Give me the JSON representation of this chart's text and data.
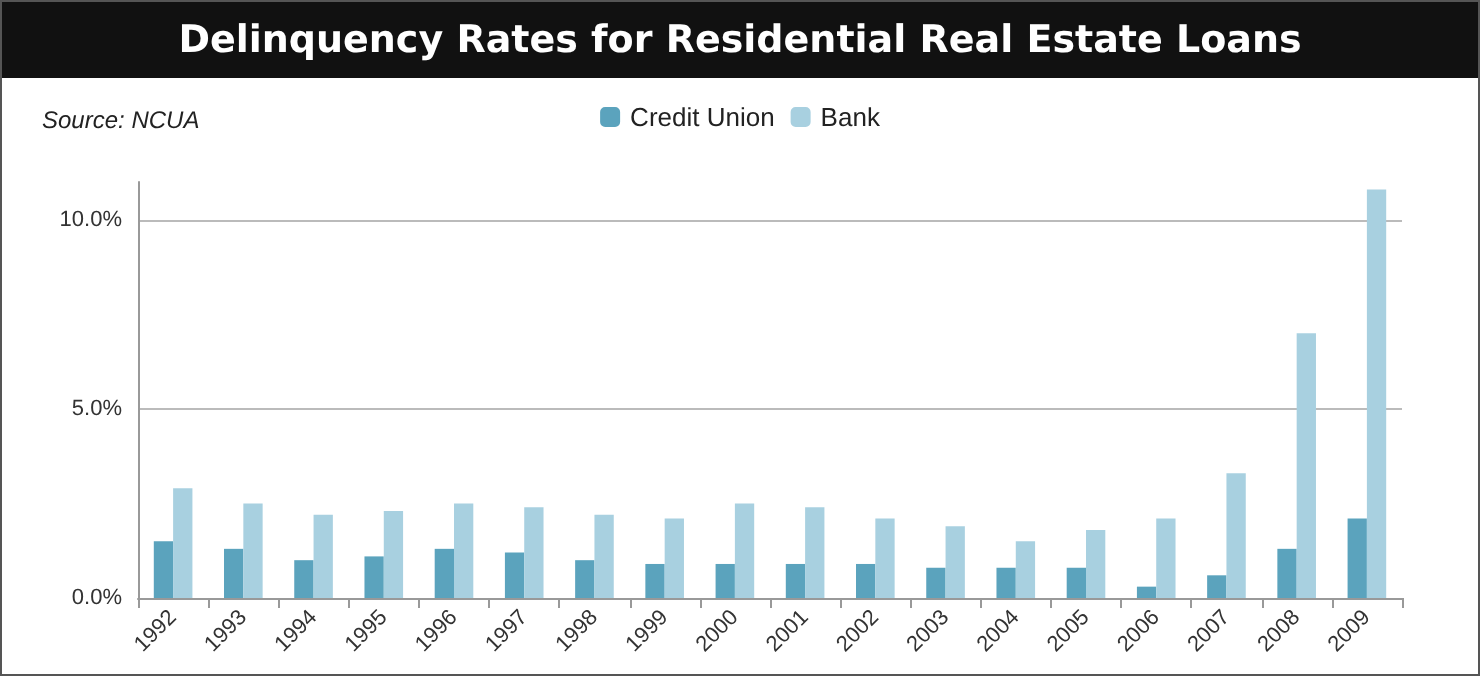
{
  "chart_data": {
    "type": "bar",
    "title": "Delinquency Rates for Residential Real Estate Loans",
    "annotations": [
      "Source: NCUA"
    ],
    "categories": [
      "1992",
      "1993",
      "1994",
      "1995",
      "1996",
      "1997",
      "1998",
      "1999",
      "2000",
      "2001",
      "2002",
      "2003",
      "2004",
      "2005",
      "2006",
      "2007",
      "2008",
      "2009"
    ],
    "series": [
      {
        "name": "Credit Union",
        "color": "#5ba3bd",
        "values": [
          1.5,
          1.3,
          1.0,
          1.1,
          1.3,
          1.2,
          1.0,
          0.9,
          0.9,
          0.9,
          0.9,
          0.8,
          0.8,
          0.8,
          0.3,
          0.6,
          1.3,
          2.1
        ]
      },
      {
        "name": "Bank",
        "color": "#a8d0e0",
        "values": [
          2.9,
          2.5,
          2.2,
          2.3,
          2.5,
          2.4,
          2.2,
          2.1,
          2.5,
          2.4,
          2.1,
          1.9,
          1.5,
          1.8,
          2.1,
          3.3,
          7.0,
          10.8
        ]
      }
    ],
    "ylim": [
      0,
      11
    ],
    "yticks": [
      {
        "value": 0,
        "label": "0.0%"
      },
      {
        "value": 5,
        "label": "5.0%"
      },
      {
        "value": 10,
        "label": "10.0%"
      }
    ],
    "grid": "y",
    "legend": "top"
  }
}
